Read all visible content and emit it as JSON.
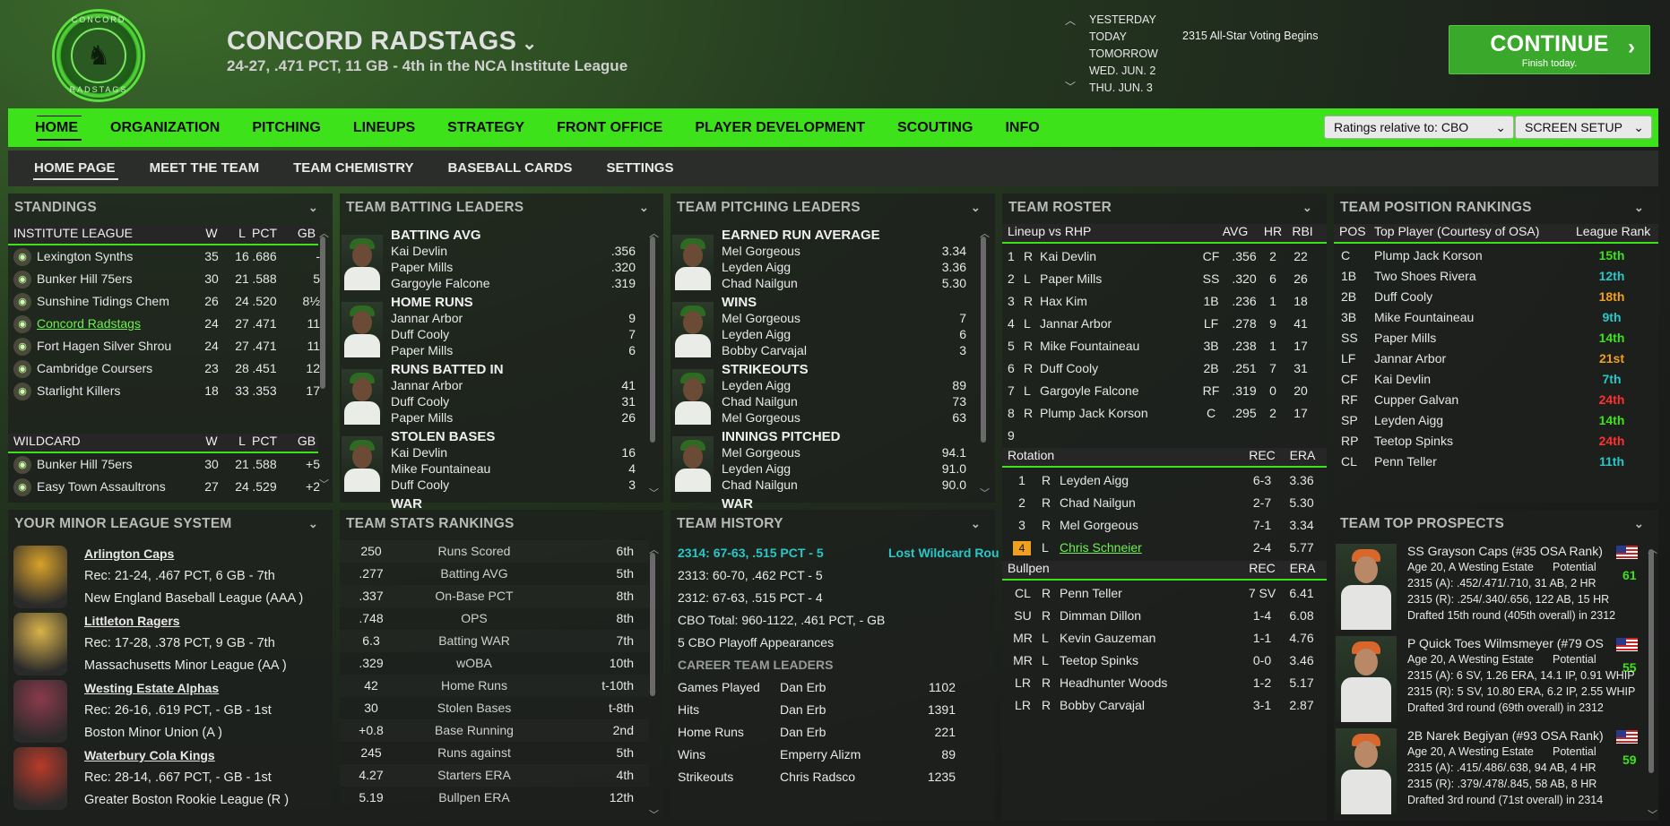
{
  "header": {
    "logo_text_top": "CONCORD",
    "logo_text_bottom": "RADSTAGS",
    "team_name": "CONCORD RADSTAGS",
    "team_record": "24-27, .471 PCT, 11 GB - 4th in the NCA Institute League",
    "dates": [
      "YESTERDAY",
      "TODAY",
      "TOMORROW",
      "WED. JUN. 2",
      "THU. JUN. 3"
    ],
    "event": "2315 All-Star Voting Begins",
    "continue_label": "CONTINUE",
    "continue_sub": "Finish today."
  },
  "nav": {
    "items": [
      "HOME",
      "ORGANIZATION",
      "PITCHING",
      "LINEUPS",
      "STRATEGY",
      "FRONT OFFICE",
      "PLAYER DEVELOPMENT",
      "SCOUTING",
      "INFO"
    ],
    "ratings_select": "Ratings relative to: CBO",
    "screen_setup": "SCREEN SETUP"
  },
  "subnav": {
    "items": [
      "HOME PAGE",
      "MEET THE TEAM",
      "TEAM CHEMISTRY",
      "BASEBALL CARDS",
      "SETTINGS"
    ]
  },
  "standings": {
    "title": "STANDINGS",
    "league_header": [
      "INSTITUTE LEAGUE",
      "W",
      "L",
      "PCT",
      "GB"
    ],
    "league_rows": [
      [
        "Lexington Synths",
        "35",
        "16",
        ".686",
        "-"
      ],
      [
        "Bunker Hill 75ers",
        "30",
        "21",
        ".588",
        "5"
      ],
      [
        "Sunshine Tidings Chem",
        "26",
        "24",
        ".520",
        "8½"
      ],
      [
        "Concord Radstags",
        "24",
        "27",
        ".471",
        "11"
      ],
      [
        "Fort Hagen Silver Shrou",
        "24",
        "27",
        ".471",
        "11"
      ],
      [
        "Cambridge Coursers",
        "23",
        "28",
        ".451",
        "12"
      ],
      [
        "Starlight Killers",
        "18",
        "33",
        ".353",
        "17"
      ]
    ],
    "wild_header": [
      "WILDCARD",
      "W",
      "L",
      "PCT",
      "GB"
    ],
    "wild_rows": [
      [
        "Bunker Hill 75ers",
        "30",
        "21",
        ".588",
        "+5"
      ],
      [
        "Easy Town Assaultrons",
        "27",
        "24",
        ".529",
        "+2"
      ]
    ]
  },
  "batting": {
    "title": "TEAM BATTING LEADERS",
    "cats": [
      {
        "name": "BATTING AVG",
        "rows": [
          [
            "Kai Devlin",
            ".356"
          ],
          [
            "Paper Mills",
            ".320"
          ],
          [
            "Gargoyle Falcone",
            ".319"
          ]
        ]
      },
      {
        "name": "HOME RUNS",
        "rows": [
          [
            "Jannar Arbor",
            "9"
          ],
          [
            "Duff Cooly",
            "7"
          ],
          [
            "Paper Mills",
            "6"
          ]
        ]
      },
      {
        "name": "RUNS BATTED IN",
        "rows": [
          [
            "Jannar Arbor",
            "41"
          ],
          [
            "Duff Cooly",
            "31"
          ],
          [
            "Paper Mills",
            "26"
          ]
        ]
      },
      {
        "name": "STOLEN BASES",
        "rows": [
          [
            "Kai Devlin",
            "16"
          ],
          [
            "Mike Fountaineau",
            "4"
          ],
          [
            "Duff Cooly",
            "3"
          ]
        ]
      }
    ],
    "cut": "WAR"
  },
  "pitching": {
    "title": "TEAM PITCHING LEADERS",
    "cats": [
      {
        "name": "EARNED RUN AVERAGE",
        "rows": [
          [
            "Mel Gorgeous",
            "3.34"
          ],
          [
            "Leyden Aigg",
            "3.36"
          ],
          [
            "Chad Nailgun",
            "5.30"
          ]
        ]
      },
      {
        "name": "WINS",
        "rows": [
          [
            "Mel Gorgeous",
            "7"
          ],
          [
            "Leyden Aigg",
            "6"
          ],
          [
            "Bobby Carvajal",
            "3"
          ]
        ]
      },
      {
        "name": "STRIKEOUTS",
        "rows": [
          [
            "Leyden Aigg",
            "89"
          ],
          [
            "Chad Nailgun",
            "73"
          ],
          [
            "Mel Gorgeous",
            "63"
          ]
        ]
      },
      {
        "name": "INNINGS PITCHED",
        "rows": [
          [
            "Mel Gorgeous",
            "94.1"
          ],
          [
            "Leyden Aigg",
            "91.0"
          ],
          [
            "Chad Nailgun",
            "90.0"
          ]
        ]
      }
    ],
    "cut": "WAR"
  },
  "roster": {
    "title": "TEAM ROSTER",
    "lineup_header": [
      "Lineup vs RHP",
      "AVG",
      "HR",
      "RBI"
    ],
    "lineup": [
      [
        "1",
        "R",
        "Kai Devlin",
        "CF",
        ".356",
        "2",
        "22"
      ],
      [
        "2",
        "L",
        "Paper Mills",
        "SS",
        ".320",
        "6",
        "26"
      ],
      [
        "3",
        "R",
        "Hax Kim",
        "1B",
        ".236",
        "1",
        "18"
      ],
      [
        "4",
        "L",
        "Jannar Arbor",
        "LF",
        ".278",
        "9",
        "41"
      ],
      [
        "5",
        "R",
        "Mike Fountaineau",
        "3B",
        ".238",
        "1",
        "17"
      ],
      [
        "6",
        "R",
        "Duff Cooly",
        "2B",
        ".251",
        "7",
        "31"
      ],
      [
        "7",
        "L",
        "Gargoyle Falcone",
        "RF",
        ".319",
        "0",
        "20"
      ],
      [
        "8",
        "R",
        "Plump Jack Korson",
        "C",
        ".295",
        "2",
        "17"
      ],
      [
        "9",
        "",
        "",
        "",
        "",
        "",
        ""
      ]
    ],
    "rotation_header": [
      "Rotation",
      "REC",
      "ERA"
    ],
    "rotation": [
      [
        "1",
        "R",
        "Leyden Aigg",
        "6-3",
        "3.36"
      ],
      [
        "2",
        "R",
        "Chad Nailgun",
        "2-7",
        "5.30"
      ],
      [
        "3",
        "R",
        "Mel Gorgeous",
        "7-1",
        "3.34"
      ],
      [
        "4",
        "L",
        "Chris Schneier",
        "2-4",
        "5.77"
      ]
    ],
    "bullpen_header": [
      "Bullpen",
      "REC",
      "ERA"
    ],
    "bullpen": [
      [
        "CL",
        "R",
        "Penn Teller",
        "7 SV",
        "6.41"
      ],
      [
        "SU",
        "R",
        "Dimman Dillon",
        "1-4",
        "6.08"
      ],
      [
        "MR",
        "L",
        "Kevin Gauzeman",
        "1-1",
        "4.76"
      ],
      [
        "MR",
        "L",
        "Teetop Spinks",
        "0-0",
        "3.46"
      ],
      [
        "LR",
        "R",
        "Headhunter Woods",
        "1-2",
        "5.17"
      ],
      [
        "LR",
        "R",
        "Bobby Carvajal",
        "3-1",
        "2.87"
      ]
    ]
  },
  "positions": {
    "title": "TEAM POSITION RANKINGS",
    "header": [
      "POS",
      "Top Player (Courtesy of OSA)",
      "League Rank"
    ],
    "rows": [
      [
        "C",
        "Plump Jack Korson",
        "15th",
        "#3ee21a"
      ],
      [
        "1B",
        "Two Shoes Rivera",
        "12th",
        "#29c7c7"
      ],
      [
        "2B",
        "Duff Cooly",
        "18th",
        "#f0a020"
      ],
      [
        "3B",
        "Mike Fountaineau",
        "9th",
        "#29c7c7"
      ],
      [
        "SS",
        "Paper Mills",
        "14th",
        "#3ee21a"
      ],
      [
        "LF",
        "Jannar Arbor",
        "21st",
        "#f0a020"
      ],
      [
        "CF",
        "Kai Devlin",
        "7th",
        "#29c7c7"
      ],
      [
        "RF",
        "Cupper Galvan",
        "24th",
        "#ff3030"
      ],
      [
        "SP",
        "Leyden Aigg",
        "14th",
        "#3ee21a"
      ],
      [
        "RP",
        "Teetop Spinks",
        "24th",
        "#ff3030"
      ],
      [
        "CL",
        "Penn Teller",
        "11th",
        "#29c7c7"
      ]
    ]
  },
  "minors": {
    "title": "YOUR MINOR LEAGUE SYSTEM",
    "teams": [
      {
        "name": "Arlington Caps",
        "rec": "Rec: 21-24, .467 PCT, 6 GB - 7th",
        "league": "New England Baseball League (AAA )"
      },
      {
        "name": "Littleton Ragers",
        "rec": "Rec: 17-28, .378 PCT, 9 GB - 7th",
        "league": "Massachusetts Minor League (AA )"
      },
      {
        "name": "Westing Estate Alphas",
        "rec": "Rec: 26-16, .619 PCT, - GB - 1st",
        "league": "Boston Minor Union (A )"
      },
      {
        "name": "Waterbury Cola Kings",
        "rec": "Rec: 28-14, .667 PCT, - GB - 1st",
        "league": "Greater Boston Rookie League (R )"
      }
    ]
  },
  "stats": {
    "title": "TEAM STATS RANKINGS",
    "rows": [
      [
        "250",
        "Runs Scored",
        "6th"
      ],
      [
        ".277",
        "Batting AVG",
        "5th"
      ],
      [
        ".337",
        "On-Base PCT",
        "8th"
      ],
      [
        ".748",
        "OPS",
        "8th"
      ],
      [
        "6.3",
        "Batting WAR",
        "7th"
      ],
      [
        ".329",
        "wOBA",
        "10th"
      ],
      [
        "42",
        "Home Runs",
        "t-10th"
      ],
      [
        "30",
        "Stolen Bases",
        "t-8th"
      ],
      [
        "+0.8",
        "Base Running",
        "2nd"
      ],
      [
        "245",
        "Runs against",
        "5th"
      ],
      [
        "4.27",
        "Starters ERA",
        "4th"
      ],
      [
        "5.19",
        "Bullpen ERA",
        "12th"
      ]
    ]
  },
  "history": {
    "title": "TEAM HISTORY",
    "seasons": [
      [
        "2314: 67-63, .515 PCT - 5",
        "Lost Wildcard Rou"
      ],
      [
        "2313: 60-70, .462 PCT - 5",
        ""
      ],
      [
        "2312: 67-63, .515 PCT - 4",
        ""
      ]
    ],
    "total": "CBO Total: 960-1122, .461 PCT, - GB",
    "playoffs": "5 CBO Playoff Appearances",
    "leaders_title": "CAREER TEAM LEADERS",
    "leaders": [
      [
        "Games Played",
        "Dan Erb",
        "1102"
      ],
      [
        "Hits",
        "Dan Erb",
        "1391"
      ],
      [
        "Home Runs",
        "Dan Erb",
        "221"
      ],
      [
        "Wins",
        "Emperry Alizm",
        "89"
      ],
      [
        "Strikeouts",
        "Chris Radsco",
        "1235"
      ]
    ]
  },
  "prospects": {
    "title": "TEAM TOP PROSPECTS",
    "potential_label": "Potential",
    "items": [
      {
        "name": "SS Grayson Caps (#35 OSA Rank)",
        "age": "Age 20, A Westing Estate",
        "pot": "61",
        "l1": "2315 (A): .452/.471/.710, 31 AB, 2 HR",
        "l2": "2315 (R): .254/.340/.656, 122 AB, 15 HR",
        "l3": "Drafted 15th round (405th overall) in 2312"
      },
      {
        "name": "P Quick Toes Wilmsmeyer (#79 OS",
        "age": "Age 20, A Westing Estate",
        "pot": "55",
        "l1": "2315 (A): 6 SV, 1.26 ERA, 14.1 IP, 0.91 WHIP",
        "l2": "2315 (R): 5 SV, 10.80 ERA, 6.2 IP, 2.55 WHIP",
        "l3": "Drafted 3rd round (69th overall) in 2312"
      },
      {
        "name": "2B Narek Begiyan (#93 OSA Rank)",
        "age": "Age 20, A Westing Estate",
        "pot": "59",
        "l1": "2315 (A): .415/.486/.638, 94 AB, 4 HR",
        "l2": "2315 (R): .379/.478/.845, 58 AB, 8 HR",
        "l3": "Drafted 3rd round (71st overall) in 2314"
      }
    ]
  }
}
